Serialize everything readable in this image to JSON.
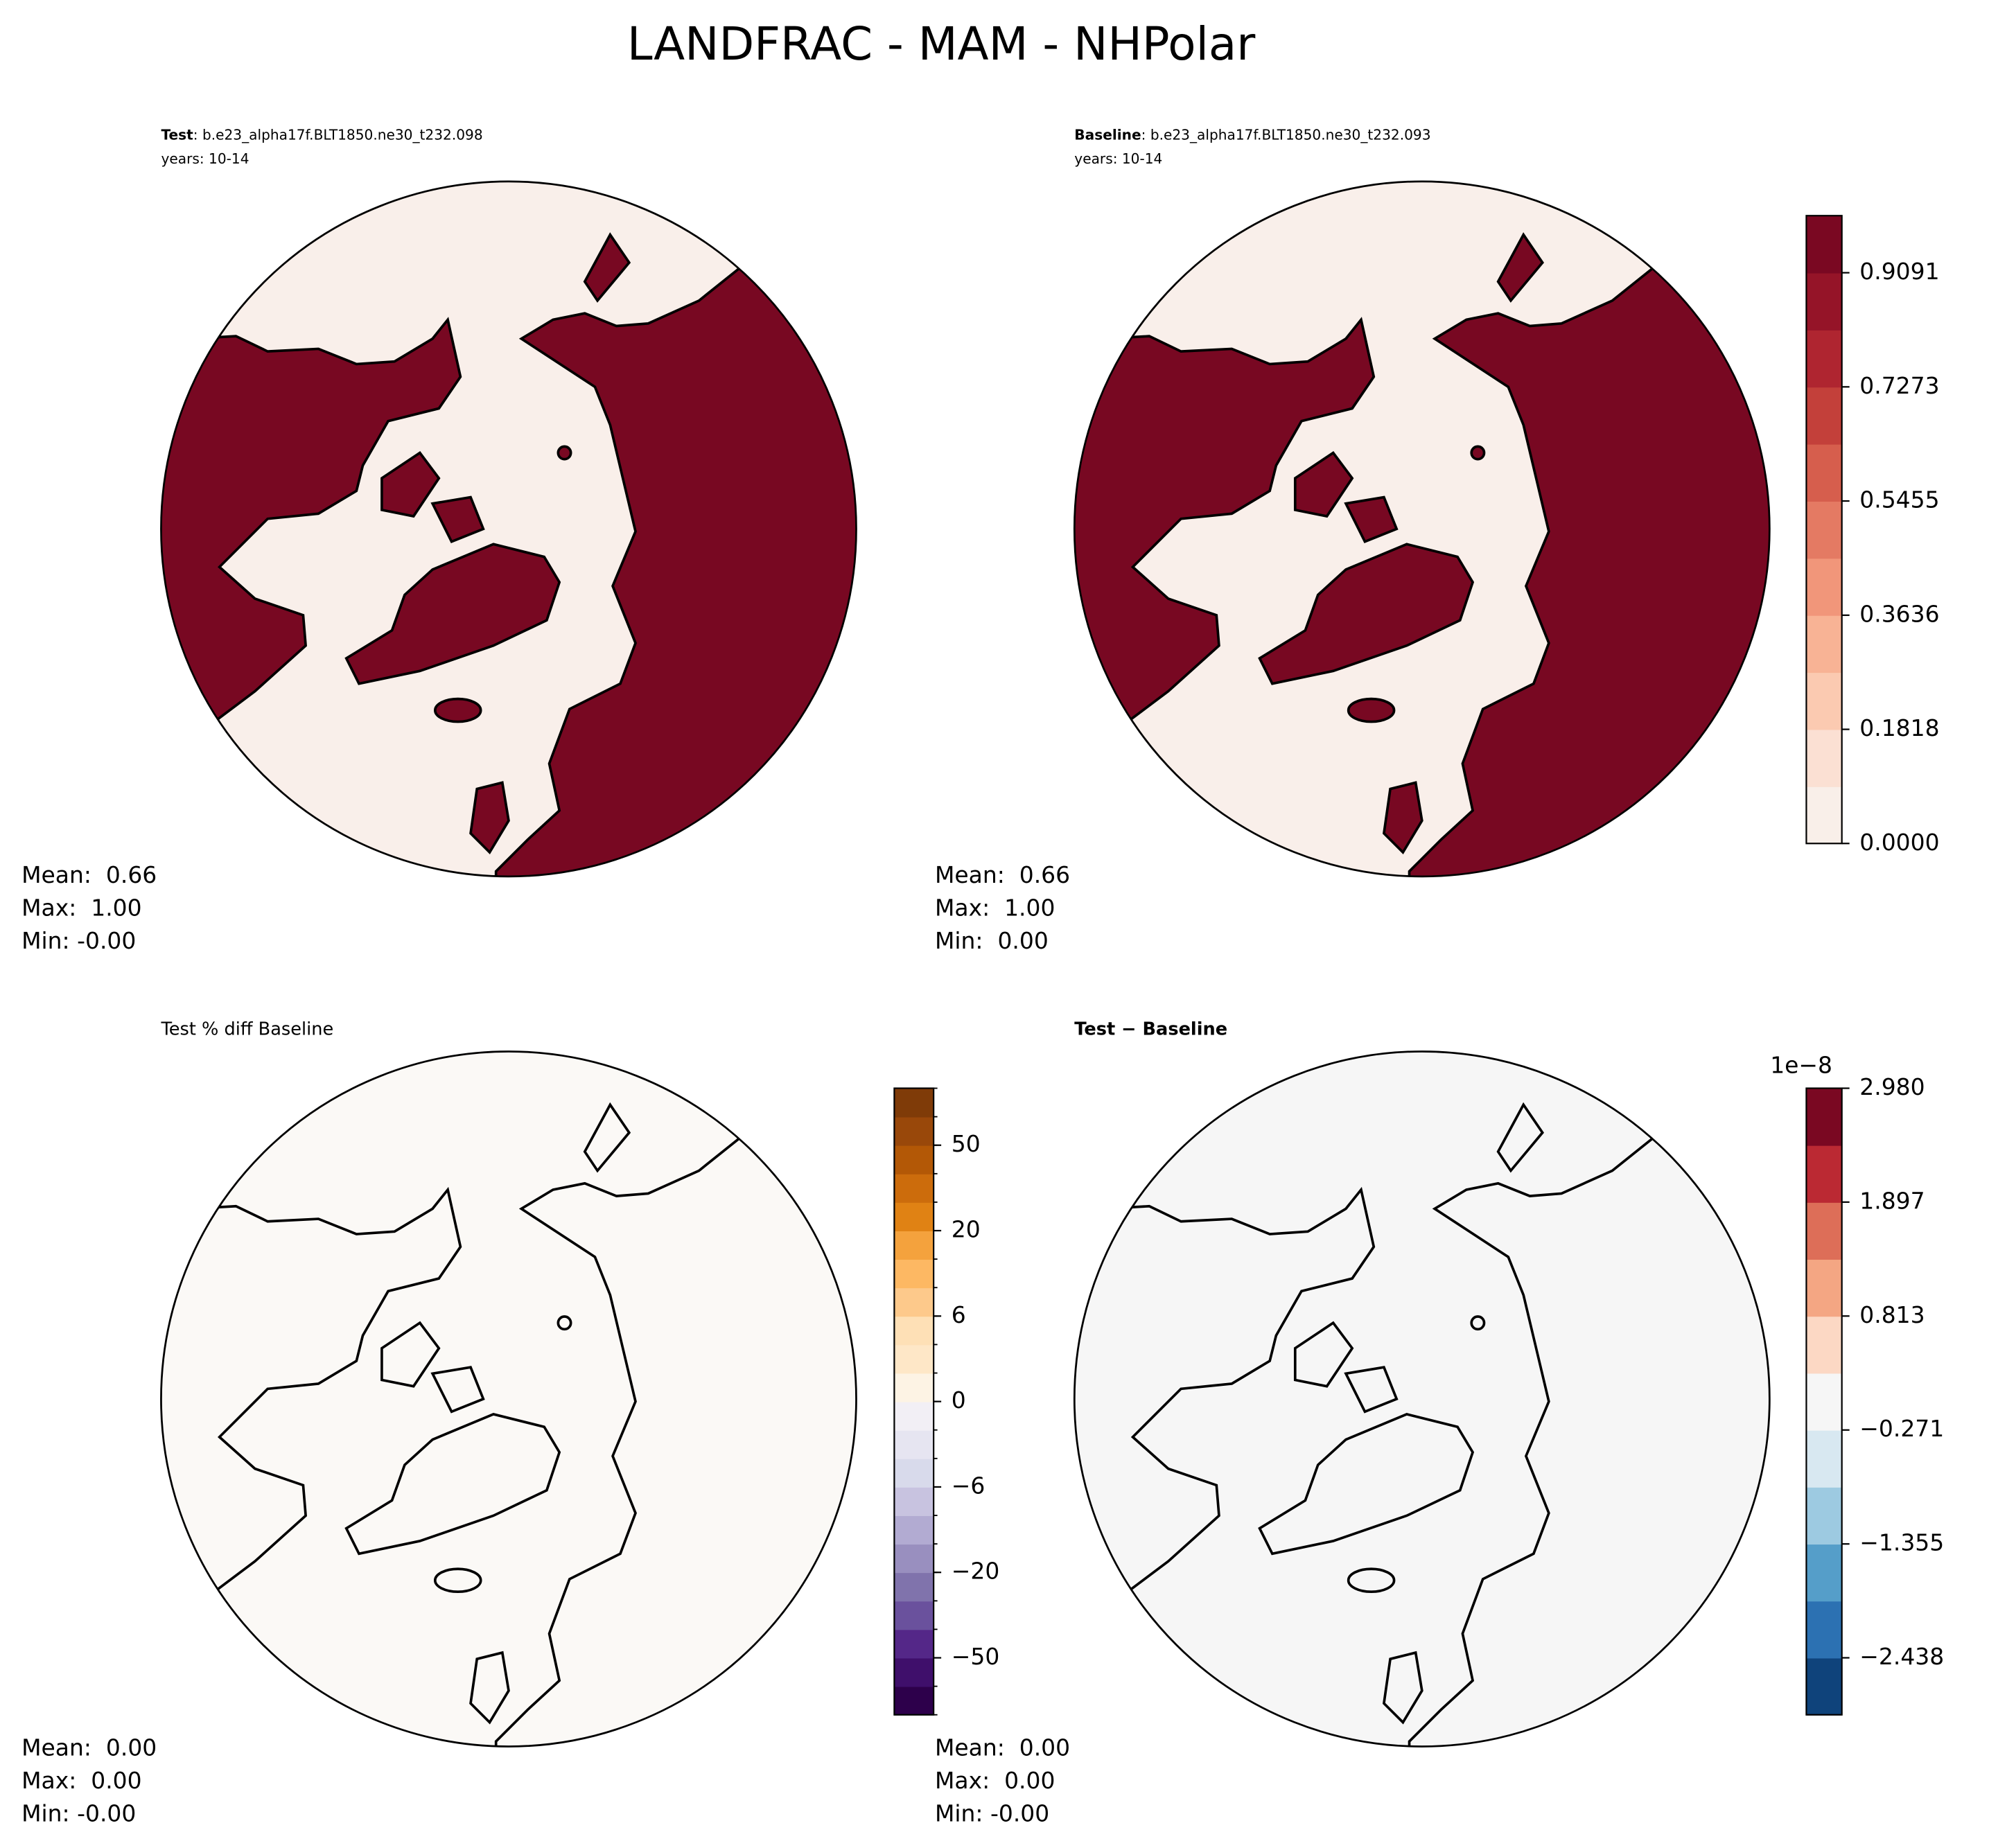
{
  "title": "LANDFRAC - MAM - NHPolar",
  "panels": [
    {
      "name": "Test",
      "case": ": b.e23_alpha17f.BLT1850.ne30_t232.098",
      "years": "years: 10-14",
      "stats": [
        "Mean:  0.66",
        "Max:  1.00",
        "Min: -0.00"
      ]
    },
    {
      "name": "Baseline",
      "case": ": b.e23_alpha17f.BLT1850.ne30_t232.093",
      "years": "years: 10-14",
      "stats": [
        "Mean:  0.66",
        "Max:  1.00",
        "Min:  0.00"
      ],
      "colorbar": {
        "lim": [
          0,
          1
        ],
        "colors": [
          "#f9efe9",
          "#fbe0d3",
          "#fbcab1",
          "#f8b395",
          "#f1967a",
          "#e47a63",
          "#d65e4d",
          "#c3403a",
          "#af2530",
          "#951428",
          "#7a0822"
        ],
        "ticks": [
          {
            "value": 0,
            "label": "0.0000"
          },
          {
            "value": 0.1818,
            "label": "0.1818"
          },
          {
            "value": 0.3636,
            "label": "0.3636"
          },
          {
            "value": 0.5455,
            "label": "0.5455"
          },
          {
            "value": 0.7273,
            "label": "0.7273"
          },
          {
            "value": 0.9091,
            "label": "0.9091"
          }
        ]
      }
    },
    {
      "title": "Test % diff Baseline",
      "stats": [
        "Mean:  0.00",
        "Max:  0.00",
        "Min: -0.00"
      ],
      "colorbar": {
        "levels": [
          -100,
          -75,
          -50,
          -40,
          -30,
          -20,
          -15,
          -10,
          -6,
          -4,
          -2,
          0,
          2,
          4,
          6,
          10,
          15,
          20,
          30,
          40,
          50,
          75,
          100
        ],
        "colors": [
          "#2d004b",
          "#3f0f6b",
          "#542788",
          "#6a519d",
          "#8073ac",
          "#998fbf",
          "#b2abd2",
          "#c8c3e0",
          "#d8daeb",
          "#e6e5f1",
          "#f2eff5",
          "#fdf3e4",
          "#fee7c7",
          "#fee0b6",
          "#fdc98b",
          "#fdb863",
          "#f4a23d",
          "#e08214",
          "#cc6c0c",
          "#b35806",
          "#99480a",
          "#7f3b08"
        ],
        "ticks": [
          {
            "value": -50,
            "label": "−50"
          },
          {
            "value": -20,
            "label": "−20"
          },
          {
            "value": -6,
            "label": "−6"
          },
          0,
          6,
          20,
          50
        ]
      }
    },
    {
      "title": "Test − Baseline",
      "stats": [
        "Mean:  0.00",
        "Max:  0.00",
        "Min: -0.00"
      ],
      "colorbar": {
        "lim": [
          -2.98,
          2.98
        ],
        "offset_label": "1e−8",
        "colors": [
          "#0f437b",
          "#2c71b2",
          "#559ec9",
          "#9dcae1",
          "#d8e8f1",
          "#f6f6f6",
          "#fcd8c4",
          "#f4a683",
          "#dd6e58",
          "#bb2933",
          "#7a0822"
        ],
        "ticks": [
          {
            "value": -2.438,
            "label": "−2.438"
          },
          {
            "value": -1.355,
            "label": "−1.355"
          },
          {
            "value": -0.271,
            "label": "−0.271"
          },
          {
            "value": 0.813,
            "label": "0.813"
          },
          {
            "value": 1.897,
            "label": "1.897"
          },
          {
            "value": 2.98,
            "label": "2.980"
          }
        ]
      }
    }
  ]
}
